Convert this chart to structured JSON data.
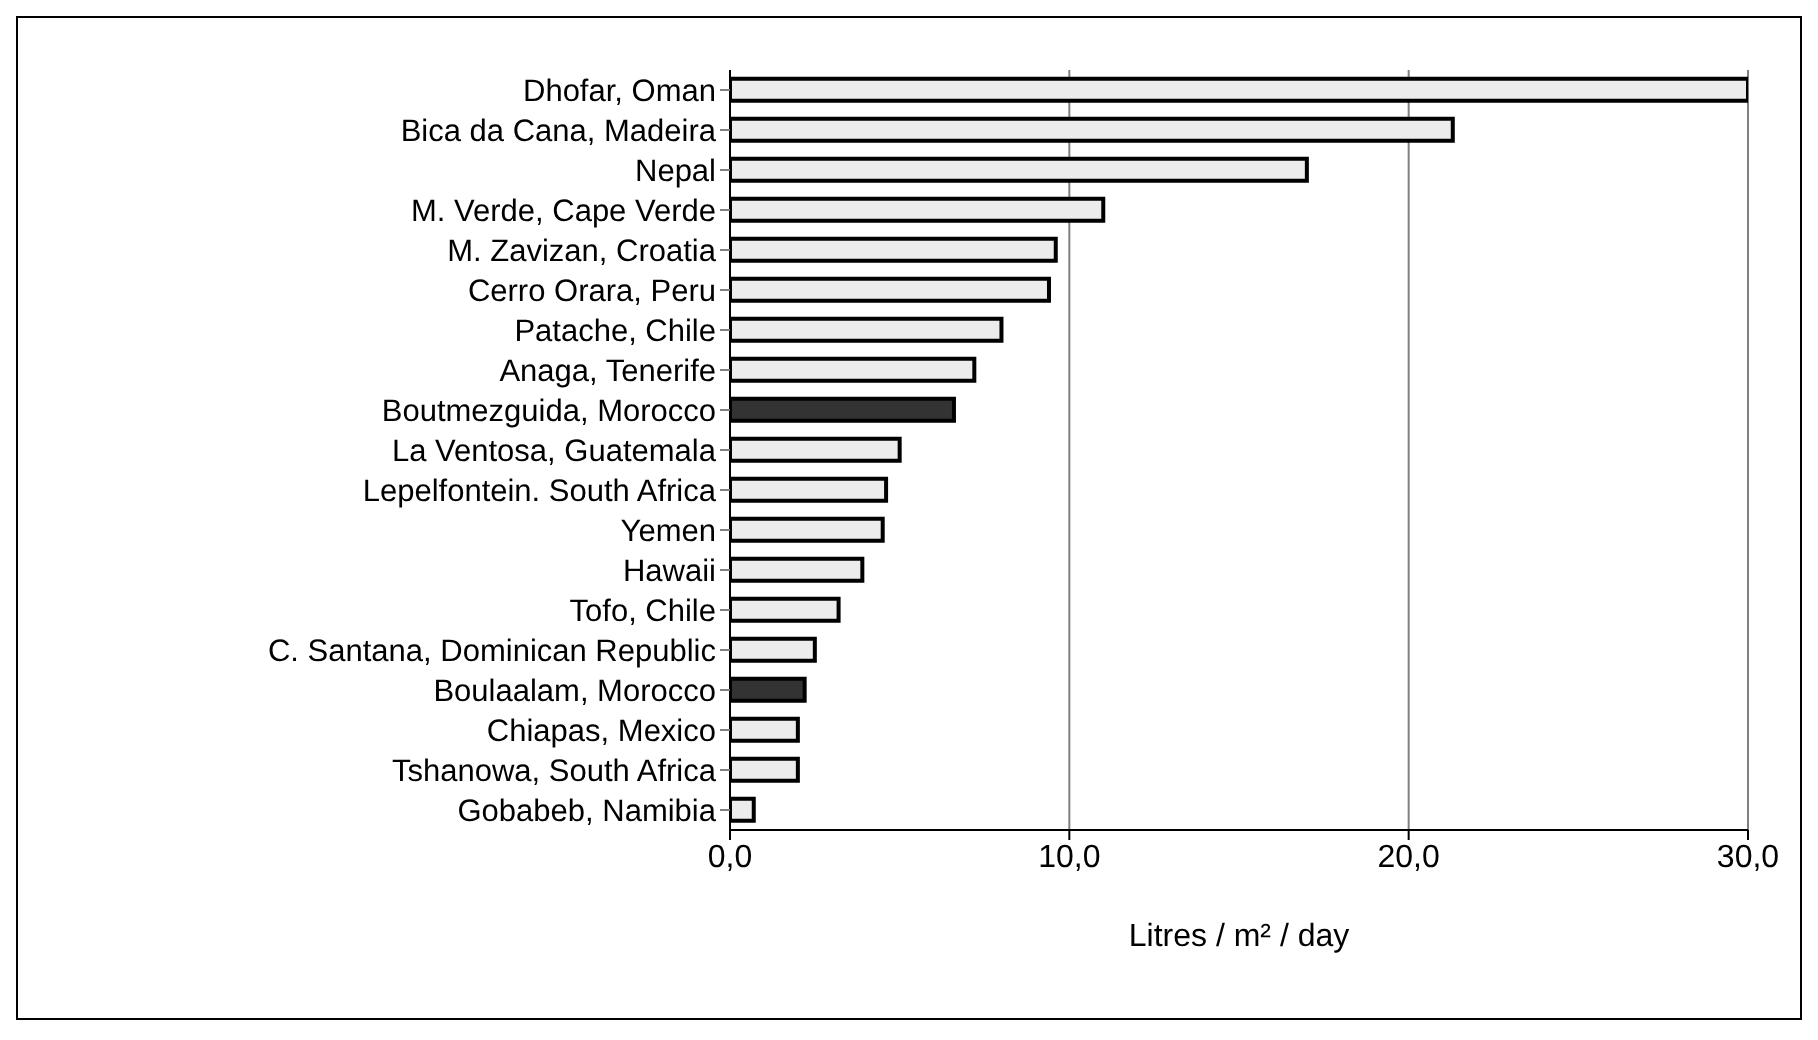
{
  "chart_data": {
    "type": "bar",
    "orientation": "horizontal",
    "xlabel": "Litres / m² / day",
    "categories": [
      "Dhofar, Oman",
      "Bica da Cana, Madeira",
      "Nepal",
      "M. Verde, Cape Verde",
      "M. Zavizan, Croatia",
      "Cerro Orara, Peru",
      "Patache, Chile",
      "Anaga, Tenerife",
      "Boutmezguida, Morocco",
      "La Ventosa, Guatemala",
      "Lepelfontein. South Africa",
      "Yemen",
      "Hawaii",
      "Tofo, Chile",
      "C. Santana, Dominican Republic",
      "Boulaalam, Morocco",
      "Chiapas, Mexico",
      "Tshanowa, South Africa",
      "Gobabeb, Namibia"
    ],
    "values": [
      30,
      21.3,
      17.0,
      11.0,
      9.6,
      9.4,
      8.0,
      7.2,
      6.6,
      5.0,
      4.6,
      4.5,
      3.9,
      3.2,
      2.5,
      2.2,
      2.0,
      2.0,
      0.7
    ],
    "colors": [
      "#ececec",
      "#ececec",
      "#ececec",
      "#ececec",
      "#ececec",
      "#ececec",
      "#ececec",
      "#ececec",
      "#333333",
      "#ececec",
      "#ececec",
      "#ececec",
      "#ececec",
      "#ececec",
      "#ececec",
      "#333333",
      "#ececec",
      "#ececec",
      "#ececec"
    ],
    "xlim": [
      0,
      30
    ],
    "xticks": [
      {
        "value": 0,
        "label": "0,0"
      },
      {
        "value": 10,
        "label": "10,0"
      },
      {
        "value": 20,
        "label": "20,0"
      },
      {
        "value": 30,
        "label": "30,0"
      }
    ],
    "grid": "x"
  }
}
